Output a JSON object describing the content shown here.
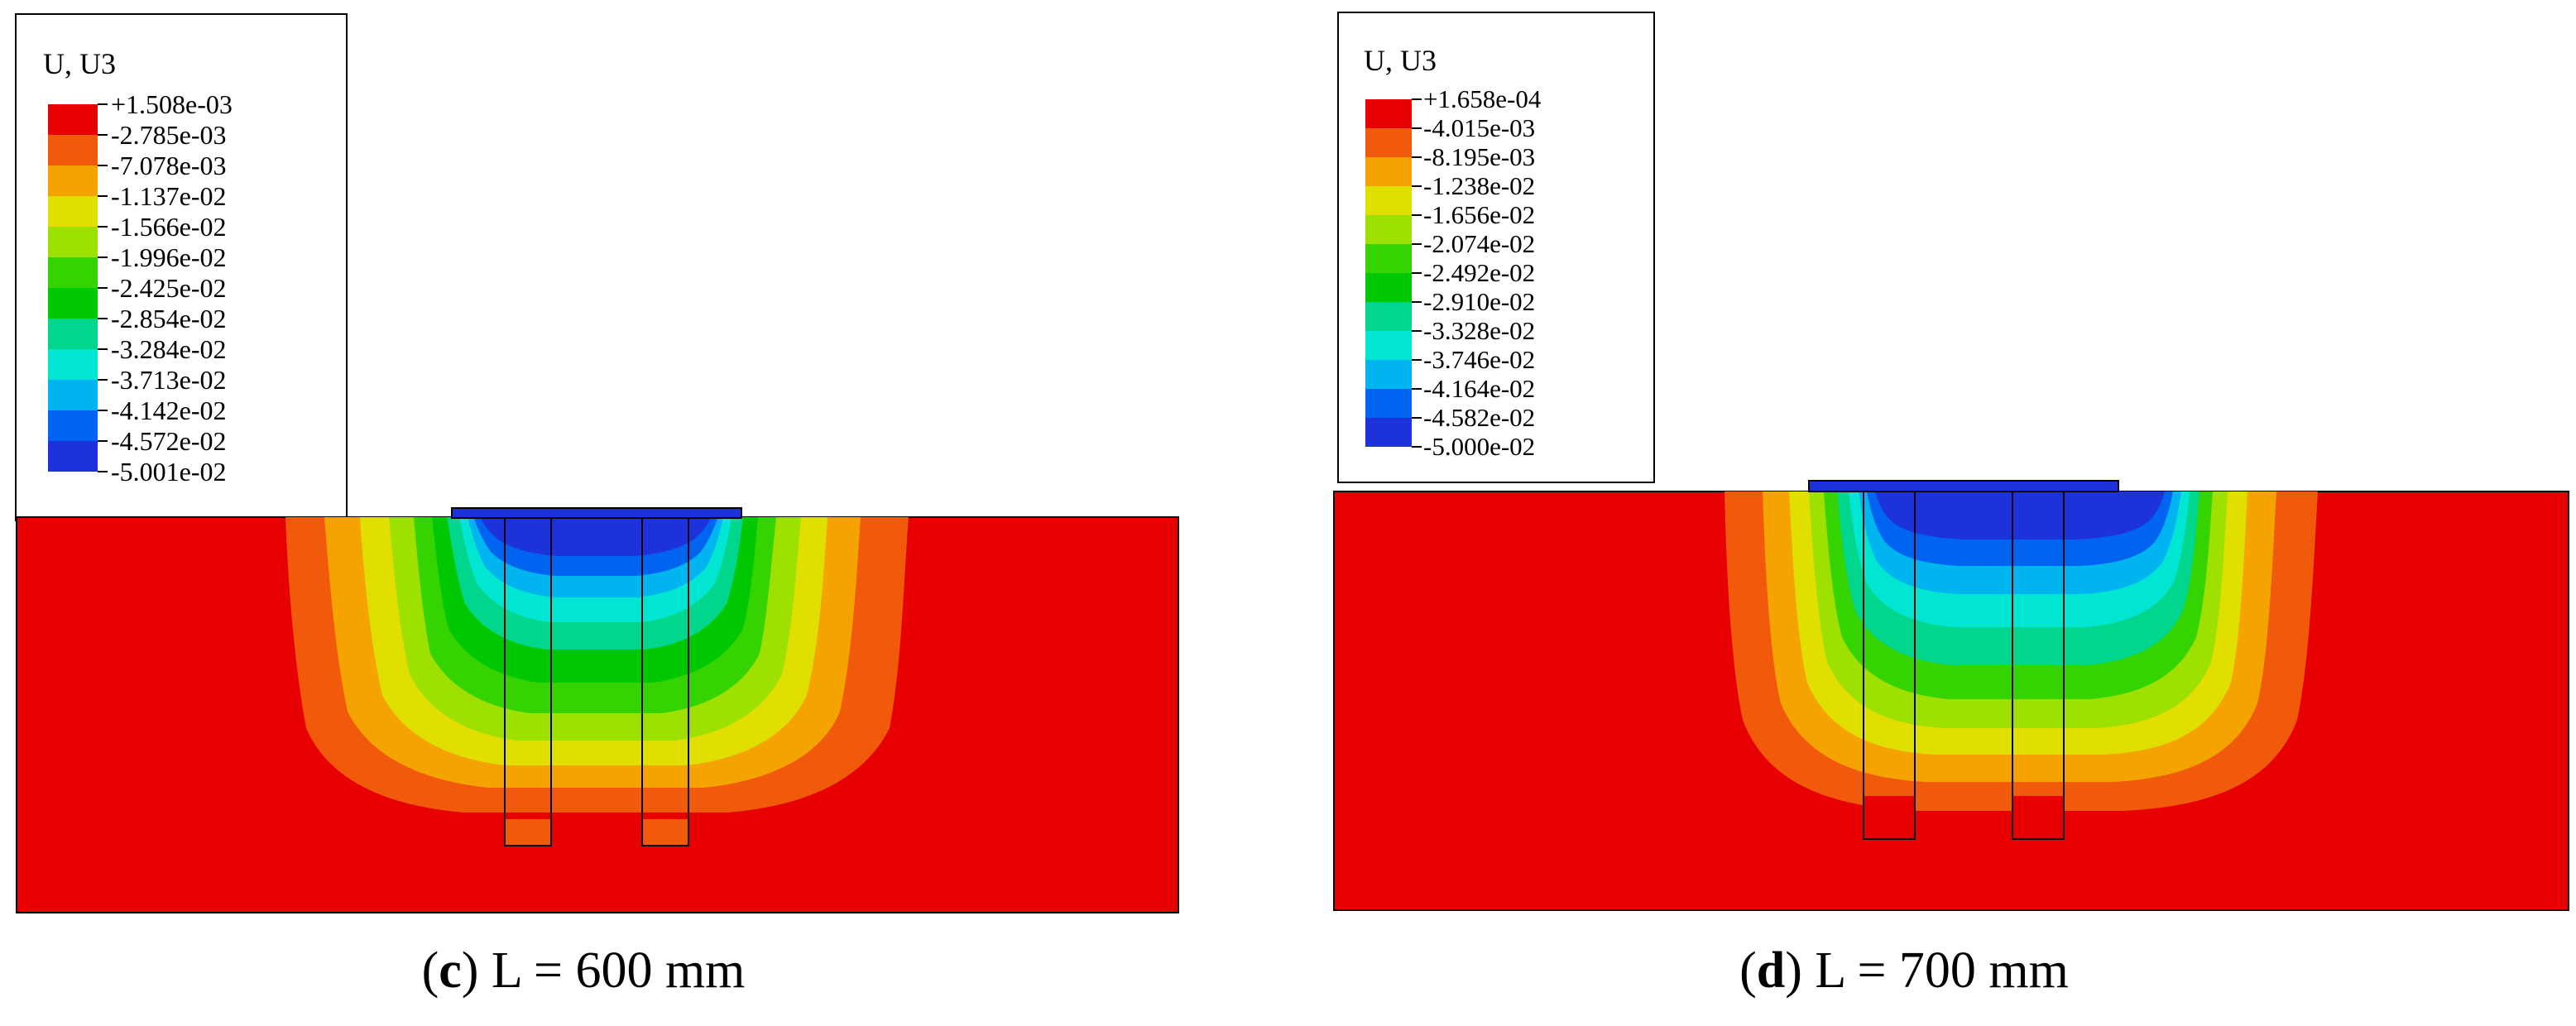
{
  "panels": [
    {
      "id": "c",
      "legend": {
        "title": "U, U3",
        "levels": [
          "+1.508e-03",
          "-2.785e-03",
          "-7.078e-03",
          "-1.137e-02",
          "-1.566e-02",
          "-1.996e-02",
          "-2.425e-02",
          "-2.854e-02",
          "-3.284e-02",
          "-3.713e-02",
          "-4.142e-02",
          "-4.572e-02",
          "-5.001e-02"
        ]
      },
      "caption": {
        "letter": "c",
        "text": "L = 600 mm"
      }
    },
    {
      "id": "d",
      "legend": {
        "title": "U, U3",
        "levels": [
          "+1.658e-04",
          "-4.015e-03",
          "-8.195e-03",
          "-1.238e-02",
          "-1.656e-02",
          "-2.074e-02",
          "-2.492e-02",
          "-2.910e-02",
          "-3.328e-02",
          "-3.746e-02",
          "-4.164e-02",
          "-4.582e-02",
          "-5.000e-02"
        ]
      },
      "caption": {
        "letter": "d",
        "text": "L = 700 mm"
      }
    }
  ],
  "colors": {
    "contour_bands": [
      "#e80000",
      "#f05a0a",
      "#f5a300",
      "#e0df00",
      "#9ee000",
      "#35d400",
      "#00c800",
      "#00d78c",
      "#00e6d2",
      "#00b4f0",
      "#0064f0",
      "#1e32dc"
    ]
  }
}
